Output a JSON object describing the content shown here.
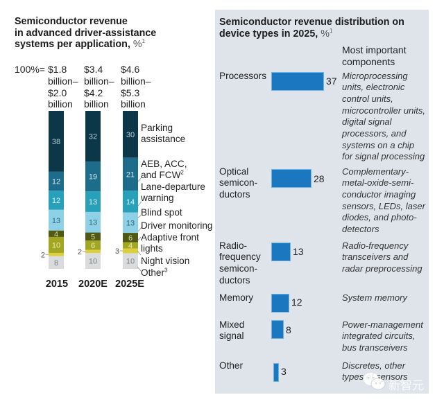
{
  "chart_data": [
    {
      "type": "bar",
      "stacked": true,
      "title_lines": [
        "Semiconductor revenue",
        "in advanced driver-assistance",
        "systems per application,"
      ],
      "title_unit": "%",
      "title_footnote": "1",
      "xlabel": "",
      "ylabel": "%",
      "ylim": [
        0,
        100
      ],
      "legend_position": "right",
      "categories": [
        "2015",
        "2020E",
        "2025E"
      ],
      "total_prefix": "100%=",
      "totals": [
        [
          "$1.8",
          "billion–",
          "$2.0",
          "billion"
        ],
        [
          "$3.4",
          "billion–",
          "$4.2",
          "billion"
        ],
        [
          "$4.6",
          "billion–",
          "$5.3",
          "billion"
        ]
      ],
      "series": [
        {
          "name": "Parking assistance",
          "label_lines": [
            "Parking",
            "assistance"
          ],
          "footnote": "",
          "values": [
            38,
            32,
            30
          ],
          "color": "#0c3748",
          "label_color": "#b7ccd6"
        },
        {
          "name": "AEB, ACC, and FCW",
          "label_lines": [
            "AEB, ACC,",
            "and FCW"
          ],
          "footnote": "2",
          "values": [
            12,
            19,
            21
          ],
          "color": "#1d6d8a",
          "label_color": "#d3e7ee"
        },
        {
          "name": "Lane-departure warning",
          "label_lines": [
            "Lane-departure",
            "warning"
          ],
          "footnote": "",
          "values": [
            12,
            13,
            14
          ],
          "color": "#28a0b9",
          "label_color": "#e0f3f7"
        },
        {
          "name": "Blind spot",
          "label_lines": [
            "Blind spot"
          ],
          "footnote": "",
          "values": [
            13,
            13,
            13
          ],
          "color": "#8ed1e6",
          "label_color": "#2f6478"
        },
        {
          "name": "Driver monitoring",
          "label_lines": [
            "Driver monitoring"
          ],
          "footnote": "",
          "values": [
            4,
            5,
            6
          ],
          "color": "#4f5914",
          "label_color": "#d4d797"
        },
        {
          "name": "Adaptive front lights",
          "label_lines": [
            "Adaptive front",
            "lights"
          ],
          "footnote": "",
          "values": [
            10,
            6,
            4
          ],
          "color": "#a1a723",
          "label_color": "#efebb0"
        },
        {
          "name": "Night vision",
          "label_lines": [
            "Night vision"
          ],
          "footnote": "",
          "values": [
            2,
            2,
            3
          ],
          "color": "#dccf3b",
          "label_color": "#555555"
        },
        {
          "name": "Other",
          "label_lines": [
            "Other"
          ],
          "footnote": "3",
          "values": [
            8,
            10,
            10
          ],
          "color": "#d9dbdc",
          "label_color": "#7a8185"
        }
      ]
    },
    {
      "type": "bar",
      "orientation": "horizontal",
      "title_lines": [
        "Semiconductor revenue distribution on",
        "device types in 2025,"
      ],
      "title_unit": "%",
      "title_footnote": "1",
      "xlabel": "",
      "ylabel": "",
      "components_header_lines": [
        "Most important",
        "components"
      ],
      "bar_color": "#1a77c0",
      "panel_color": "#dfe4eb",
      "categories": [
        "Processors",
        "Optical semiconductors",
        "Radio-frequency semiconductors",
        "Memory",
        "Mixed signal",
        "Other"
      ],
      "values": [
        37,
        28,
        13,
        12,
        8,
        3
      ],
      "rows": [
        {
          "label_lines": [
            "Processors"
          ],
          "value": 37,
          "components_lines": [
            "Microprocessing",
            "units, electronic",
            "control units,",
            "microcontroller units,",
            "digital signal",
            "processors, and",
            "systems on a chip",
            "for signal processing"
          ]
        },
        {
          "label_lines": [
            "Optical",
            "semicon-",
            "ductors"
          ],
          "value": 28,
          "components_lines": [
            "Complementary-",
            "metal-oxide-semi-",
            "conductor imaging",
            "sensors, LEDs, laser",
            "diodes, and photo-",
            "detectors"
          ]
        },
        {
          "label_lines": [
            "Radio-",
            "frequency",
            "semicon-",
            "ductors"
          ],
          "value": 13,
          "components_lines": [
            "Radio-frequency",
            "transceivers and",
            "radar preprocessing"
          ]
        },
        {
          "label_lines": [
            "Memory"
          ],
          "value": 12,
          "components_lines": [
            "System memory"
          ]
        },
        {
          "label_lines": [
            "Mixed",
            "signal"
          ],
          "value": 8,
          "components_lines": [
            "Power-management",
            "integrated circuits,",
            "bus transceivers"
          ]
        },
        {
          "label_lines": [
            "Other"
          ],
          "value": 3,
          "components_lines": [
            "Discretes, other",
            "types of sensors"
          ]
        }
      ]
    }
  ],
  "watermark": {
    "text": "新智元",
    "icon": "wechat-icon"
  }
}
